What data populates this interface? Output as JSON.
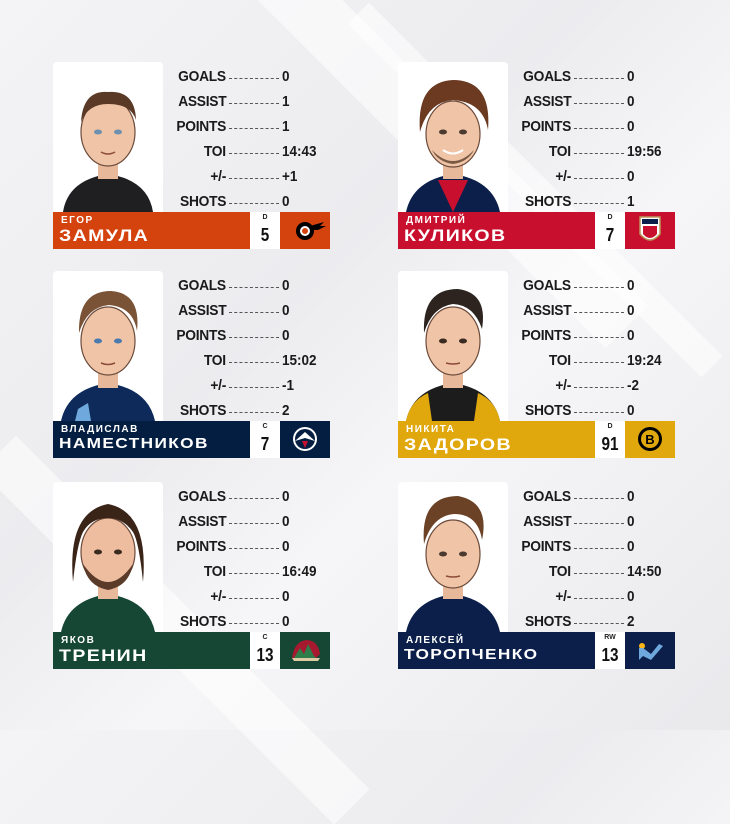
{
  "stat_labels": {
    "goals": "GOALS",
    "assist": "ASSIST",
    "points": "POINTS",
    "toi": "TOI",
    "plus_minus": "+/-",
    "shots": "SHOTS"
  },
  "players": [
    {
      "first_name": "ЕГОР",
      "last_name": "ЗАМУЛА",
      "position": "D",
      "number": "5",
      "stats": {
        "goals": "0",
        "assist": "1",
        "points": "1",
        "toi": "14:43",
        "plus_minus": "+1",
        "shots": "0"
      },
      "team_color": "#d4430e",
      "team_logo": "flyers-logo",
      "jersey_color": "#1f1f22"
    },
    {
      "first_name": "ДМИТРИЙ",
      "last_name": "КУЛИКОВ",
      "position": "D",
      "number": "7",
      "stats": {
        "goals": "0",
        "assist": "0",
        "points": "0",
        "toi": "19:56",
        "plus_minus": "0",
        "shots": "1"
      },
      "team_color": "#c8102e",
      "team_logo": "panthers-logo",
      "jersey_color": "#0b1f4a"
    },
    {
      "first_name": "ВЛАДИСЛАВ",
      "last_name": "НАМЕСТНИКОВ",
      "position": "C",
      "number": "7",
      "stats": {
        "goals": "0",
        "assist": "0",
        "points": "0",
        "toi": "15:02",
        "plus_minus": "-1",
        "shots": "2"
      },
      "team_color": "#041e42",
      "team_logo": "jets-logo",
      "jersey_color": "#0e2a5a"
    },
    {
      "first_name": "НИКИТА",
      "last_name": "ЗАДОРОВ",
      "position": "D",
      "number": "91",
      "stats": {
        "goals": "0",
        "assist": "0",
        "points": "0",
        "toi": "19:24",
        "plus_minus": "-2",
        "shots": "0"
      },
      "team_color": "#e1a80e",
      "team_logo": "bruins-logo",
      "jersey_color": "#1c1c1c"
    },
    {
      "first_name": "ЯКОВ",
      "last_name": "ТРЕНИН",
      "position": "C",
      "number": "13",
      "stats": {
        "goals": "0",
        "assist": "0",
        "points": "0",
        "toi": "16:49",
        "plus_minus": "0",
        "shots": "0"
      },
      "team_color": "#154734",
      "team_logo": "wild-logo",
      "jersey_color": "#154734"
    },
    {
      "first_name": "АЛЕКСЕЙ",
      "last_name": "ТОРОПЧЕНКО",
      "position": "RW",
      "number": "13",
      "stats": {
        "goals": "0",
        "assist": "0",
        "points": "0",
        "toi": "14:50",
        "plus_minus": "0",
        "shots": "2"
      },
      "team_color": "#0b1f4a",
      "team_logo": "blues-logo",
      "jersey_color": "#0b1f4a"
    }
  ]
}
